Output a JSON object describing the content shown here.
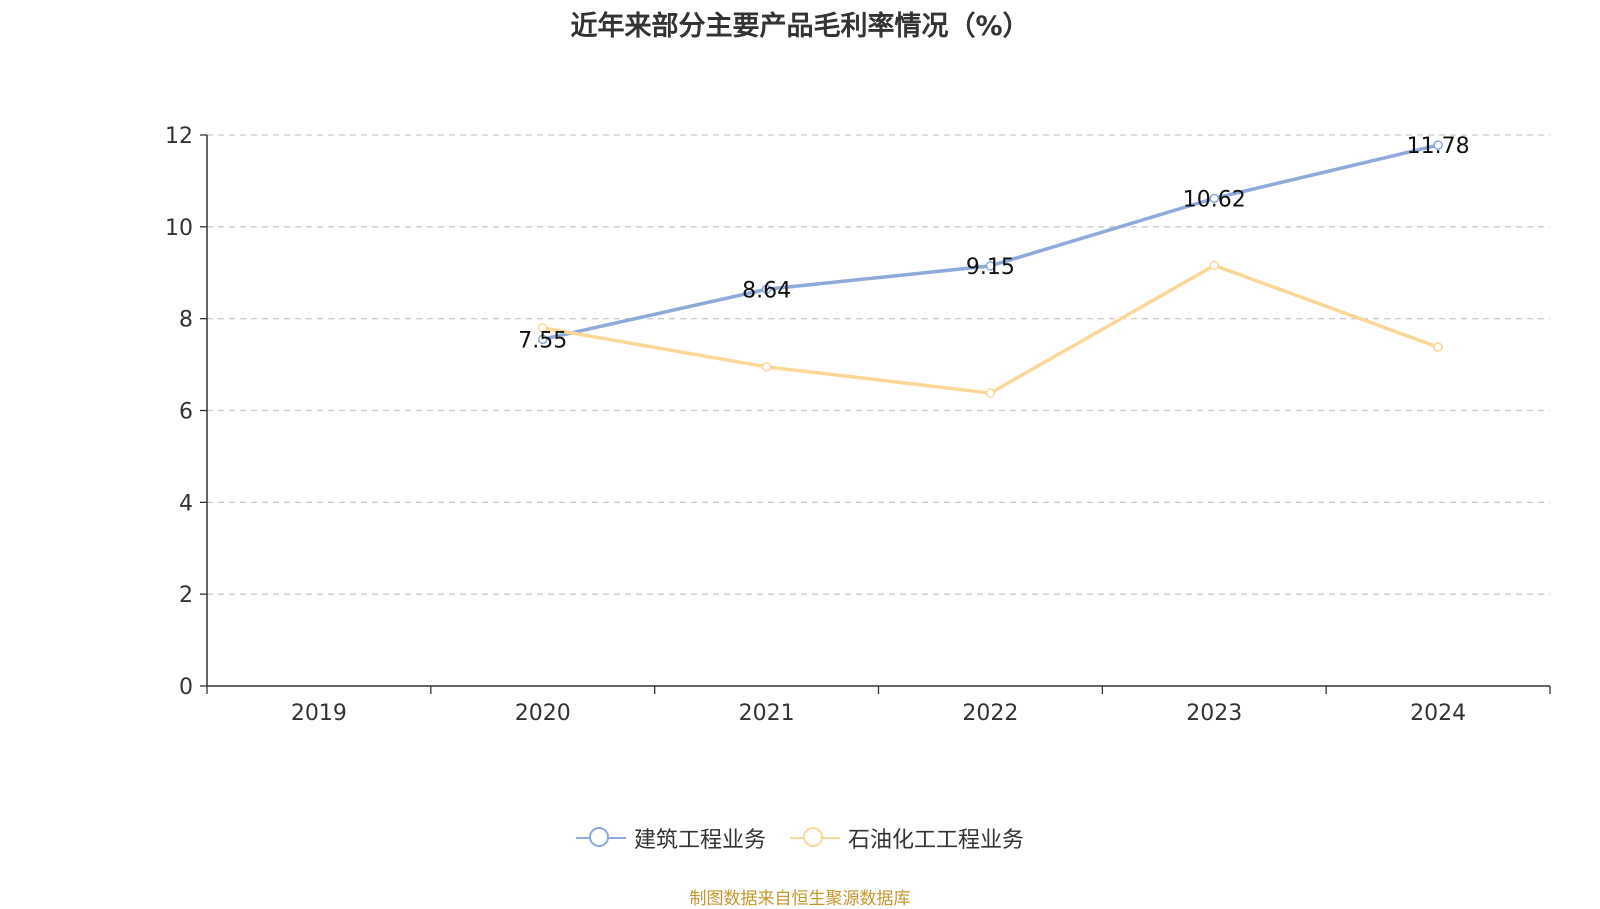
{
  "chart_data": {
    "type": "line",
    "title": "近年来部分主要产品毛利率情况（%）",
    "categories": [
      "2019",
      "2020",
      "2021",
      "2022",
      "2023",
      "2024"
    ],
    "ylim": [
      0,
      12
    ],
    "yticks": [
      "0",
      "2",
      "4",
      "6",
      "8",
      "10",
      "12"
    ],
    "grid": true,
    "legend_position": "bottom",
    "series": [
      {
        "name": "建筑工程业务",
        "values": [
          null,
          7.55,
          8.64,
          9.15,
          10.62,
          11.78
        ],
        "labels": [
          "",
          "7.55",
          "8.64",
          "9.15",
          "10.62",
          "11.78"
        ],
        "color": "#8eaadb"
      },
      {
        "name": "石油化工工程业务",
        "values": [
          null,
          7.8,
          6.95,
          6.38,
          9.16,
          7.38
        ],
        "labels": [
          "",
          "",
          "",
          "",
          "",
          ""
        ],
        "color": "#fbd898"
      }
    ]
  },
  "source_note": "制图数据来自恒生聚源数据库"
}
